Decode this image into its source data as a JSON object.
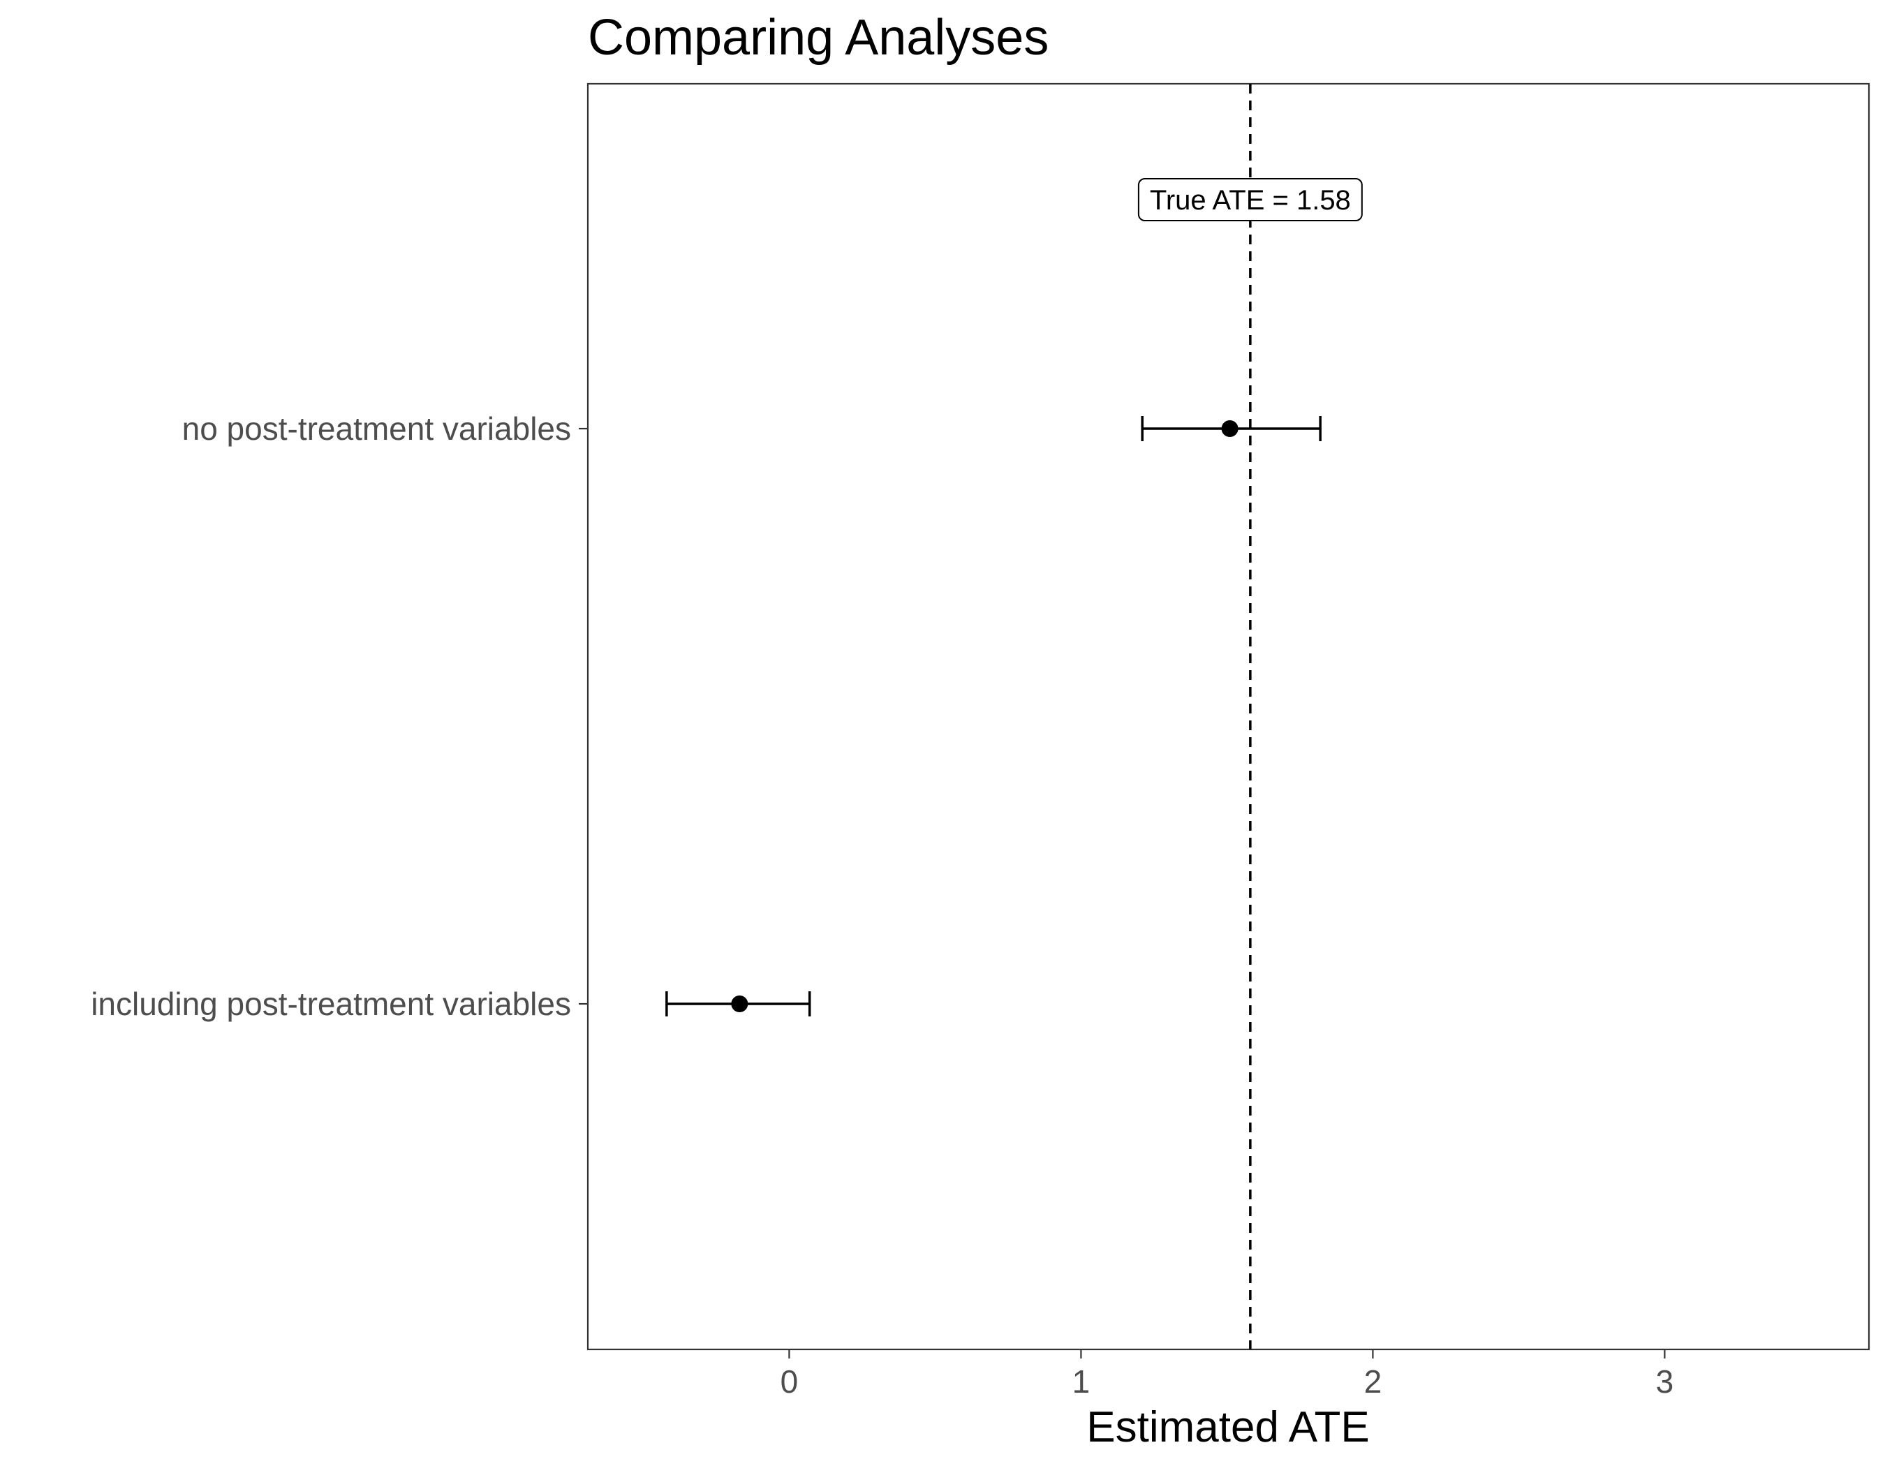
{
  "chart_data": {
    "type": "forest",
    "title": "Comparing Analyses",
    "xlabel": "Estimated ATE",
    "ylabel": "",
    "xlim": [
      -0.69,
      3.7
    ],
    "x_ticks": [
      0,
      1,
      2,
      3
    ],
    "x_tick_labels": [
      "0",
      "1",
      "2",
      "3"
    ],
    "grid": false,
    "legend": "none",
    "categories": [
      "no post-treatment variables",
      "including post-treatment variables"
    ],
    "estimates": [
      {
        "label": "no post-treatment variables",
        "estimate": 1.51,
        "lower": 1.21,
        "upper": 1.82
      },
      {
        "label": "including post-treatment variables",
        "estimate": -0.17,
        "lower": -0.42,
        "upper": 0.07
      }
    ],
    "reference_line": {
      "x": 1.58,
      "style": "dashed"
    },
    "annotation": {
      "text": "True ATE = 1.58",
      "x": 1.58
    }
  }
}
